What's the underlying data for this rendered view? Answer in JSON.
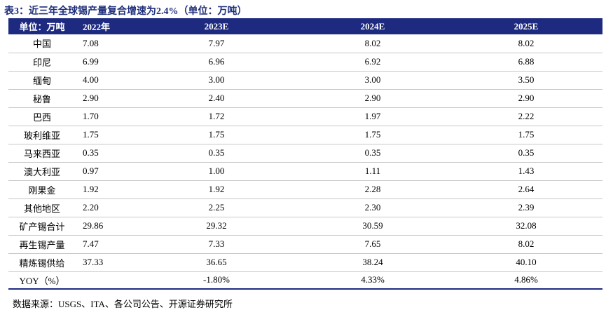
{
  "title": "表3：近三年全球锡产量复合增速为2.4%（单位：万吨）",
  "table": {
    "headers": [
      "单位：万吨",
      "2022年",
      "2023E",
      "2024E",
      "2025E"
    ],
    "rows": [
      [
        "中国",
        "7.08",
        "7.97",
        "8.02",
        "8.02"
      ],
      [
        "印尼",
        "6.99",
        "6.96",
        "6.92",
        "6.88"
      ],
      [
        "缅甸",
        "4.00",
        "3.00",
        "3.00",
        "3.50"
      ],
      [
        "秘鲁",
        "2.90",
        "2.40",
        "2.90",
        "2.90"
      ],
      [
        "巴西",
        "1.70",
        "1.72",
        "1.97",
        "2.22"
      ],
      [
        "玻利维亚",
        "1.75",
        "1.75",
        "1.75",
        "1.75"
      ],
      [
        "马来西亚",
        "0.35",
        "0.35",
        "0.35",
        "0.35"
      ],
      [
        "澳大利亚",
        "0.97",
        "1.00",
        "1.11",
        "1.43"
      ],
      [
        "刚果金",
        "1.92",
        "1.92",
        "2.28",
        "2.64"
      ],
      [
        "其他地区",
        "2.20",
        "2.25",
        "2.30",
        "2.39"
      ],
      [
        "矿产锡合计",
        "29.86",
        "29.32",
        "30.59",
        "32.08"
      ],
      [
        "再生锡产量",
        "7.47",
        "7.33",
        "7.65",
        "8.02"
      ],
      [
        "精炼锡供给",
        "37.33",
        "36.65",
        "38.24",
        "40.10"
      ],
      [
        "YOY（%）",
        "",
        "-1.80%",
        "4.33%",
        "4.86%"
      ]
    ]
  },
  "source": "数据来源：USGS、ITA、各公司公告、开源证券研究所",
  "colors": {
    "header_bg": "#1d2a80",
    "title": "#1f2f7a",
    "divider": "#c8c8c8"
  }
}
